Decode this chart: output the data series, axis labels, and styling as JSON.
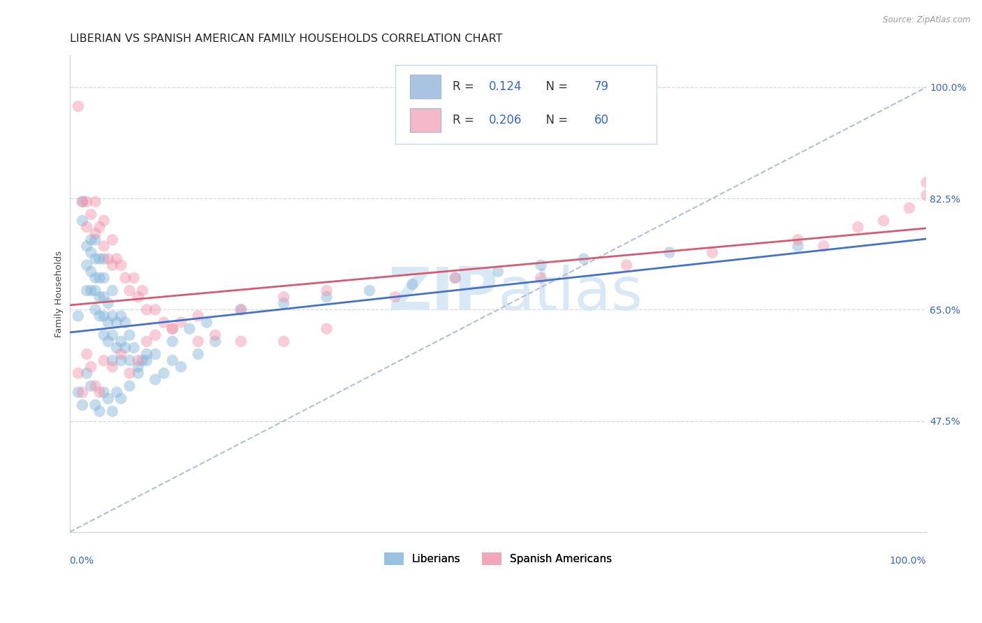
{
  "title": "LIBERIAN VS SPANISH AMERICAN FAMILY HOUSEHOLDS CORRELATION CHART",
  "source": "Source: ZipAtlas.com",
  "ylabel": "Family Households",
  "ytick_labels": [
    "47.5%",
    "65.0%",
    "82.5%",
    "100.0%"
  ],
  "ytick_values": [
    0.475,
    0.65,
    0.825,
    1.0
  ],
  "xlim": [
    0.0,
    1.0
  ],
  "ylim": [
    0.3,
    1.05
  ],
  "legend_bottom": [
    "Liberians",
    "Spanish Americans"
  ],
  "liberian_color": "#7fb3d9",
  "spanish_color": "#f090a8",
  "trendline_liberian_color": "#4472c4",
  "trendline_spanish_color": "#d45c72",
  "dashed_line_color": "#b0bece",
  "watermark_color": "#d8e8f5",
  "legend_box_color": "#a8c4e0",
  "legend_pink_color": "#f4b8c8",
  "title_fontsize": 11.5,
  "axis_fontsize": 9.5,
  "tick_fontsize": 10,
  "legend_text_color": "#3366cc",
  "liberian_x": [
    0.01,
    0.015,
    0.015,
    0.02,
    0.02,
    0.02,
    0.025,
    0.025,
    0.025,
    0.025,
    0.03,
    0.03,
    0.03,
    0.03,
    0.03,
    0.035,
    0.035,
    0.035,
    0.035,
    0.04,
    0.04,
    0.04,
    0.04,
    0.04,
    0.045,
    0.045,
    0.045,
    0.05,
    0.05,
    0.05,
    0.05,
    0.055,
    0.055,
    0.06,
    0.06,
    0.06,
    0.065,
    0.065,
    0.07,
    0.07,
    0.075,
    0.08,
    0.085,
    0.09,
    0.1,
    0.11,
    0.12,
    0.13,
    0.15,
    0.17,
    0.01,
    0.015,
    0.02,
    0.025,
    0.03,
    0.035,
    0.04,
    0.045,
    0.05,
    0.055,
    0.06,
    0.07,
    0.08,
    0.09,
    0.1,
    0.12,
    0.14,
    0.16,
    0.2,
    0.25,
    0.3,
    0.35,
    0.4,
    0.45,
    0.5,
    0.55,
    0.6,
    0.7,
    0.85
  ],
  "liberian_y": [
    0.64,
    0.79,
    0.82,
    0.68,
    0.75,
    0.72,
    0.68,
    0.71,
    0.74,
    0.76,
    0.65,
    0.68,
    0.7,
    0.73,
    0.76,
    0.64,
    0.67,
    0.7,
    0.73,
    0.61,
    0.64,
    0.67,
    0.7,
    0.73,
    0.6,
    0.63,
    0.66,
    0.57,
    0.61,
    0.64,
    0.68,
    0.59,
    0.63,
    0.57,
    0.6,
    0.64,
    0.59,
    0.63,
    0.57,
    0.61,
    0.59,
    0.56,
    0.57,
    0.58,
    0.54,
    0.55,
    0.57,
    0.56,
    0.58,
    0.6,
    0.52,
    0.5,
    0.55,
    0.53,
    0.5,
    0.49,
    0.52,
    0.51,
    0.49,
    0.52,
    0.51,
    0.53,
    0.55,
    0.57,
    0.58,
    0.6,
    0.62,
    0.63,
    0.65,
    0.66,
    0.67,
    0.68,
    0.69,
    0.7,
    0.71,
    0.72,
    0.73,
    0.74,
    0.75
  ],
  "spanish_x": [
    0.01,
    0.015,
    0.02,
    0.02,
    0.025,
    0.03,
    0.03,
    0.035,
    0.04,
    0.04,
    0.045,
    0.05,
    0.05,
    0.055,
    0.06,
    0.065,
    0.07,
    0.075,
    0.08,
    0.085,
    0.09,
    0.1,
    0.11,
    0.12,
    0.13,
    0.15,
    0.17,
    0.2,
    0.25,
    0.3,
    0.01,
    0.015,
    0.02,
    0.025,
    0.03,
    0.035,
    0.04,
    0.05,
    0.06,
    0.07,
    0.08,
    0.09,
    0.1,
    0.12,
    0.15,
    0.2,
    0.25,
    0.3,
    0.38,
    0.45,
    0.55,
    0.65,
    0.75,
    0.85,
    0.88,
    0.92,
    0.95,
    0.98,
    1.0,
    1.0
  ],
  "spanish_y": [
    0.97,
    0.82,
    0.78,
    0.82,
    0.8,
    0.77,
    0.82,
    0.78,
    0.75,
    0.79,
    0.73,
    0.72,
    0.76,
    0.73,
    0.72,
    0.7,
    0.68,
    0.7,
    0.67,
    0.68,
    0.65,
    0.65,
    0.63,
    0.62,
    0.63,
    0.6,
    0.61,
    0.6,
    0.6,
    0.62,
    0.55,
    0.52,
    0.58,
    0.56,
    0.53,
    0.52,
    0.57,
    0.56,
    0.58,
    0.55,
    0.57,
    0.6,
    0.61,
    0.62,
    0.64,
    0.65,
    0.67,
    0.68,
    0.67,
    0.7,
    0.7,
    0.72,
    0.74,
    0.76,
    0.75,
    0.78,
    0.79,
    0.81,
    0.83,
    0.85
  ]
}
